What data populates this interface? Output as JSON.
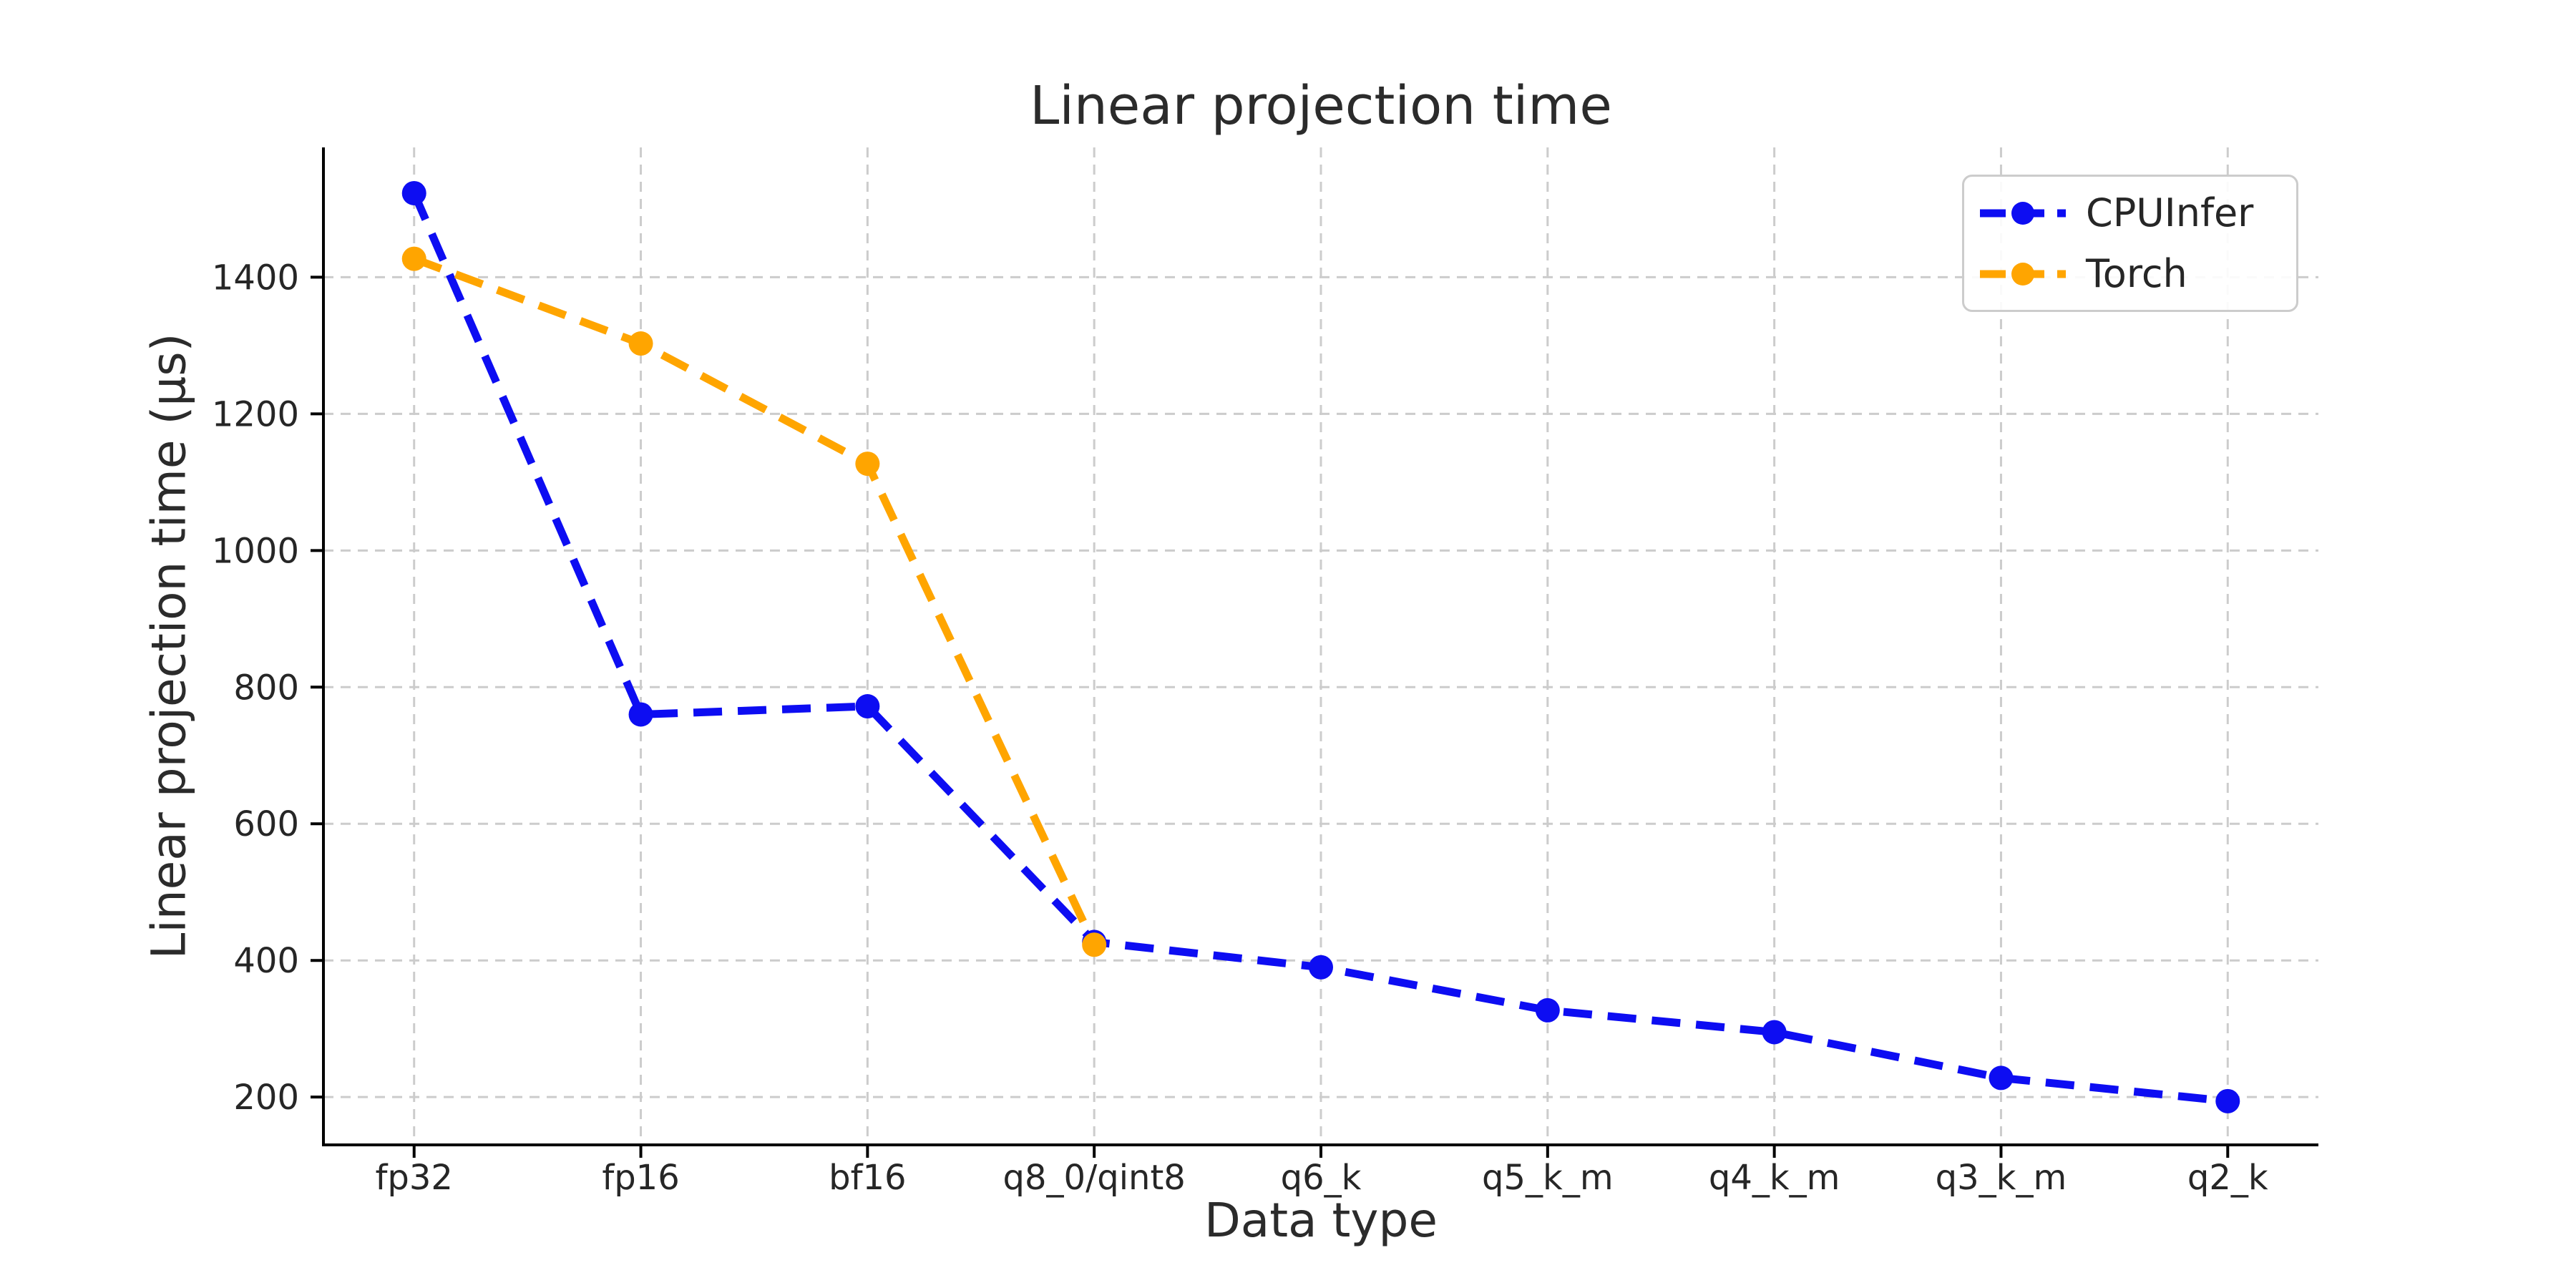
{
  "figure": {
    "background": "#ffffff"
  },
  "chart_data": {
    "type": "line",
    "title": "Linear projection time",
    "xlabel": "Data type",
    "ylabel": "Linear projection time (µs)",
    "categories": [
      "fp32",
      "fp16",
      "bf16",
      "q8_0/qint8",
      "q6_k",
      "q5_k_m",
      "q4_k_m",
      "q3_k_m",
      "q2_k"
    ],
    "y_ticks": [
      200,
      400,
      600,
      800,
      1000,
      1200,
      1400
    ],
    "ylim": [
      130,
      1590
    ],
    "xlim": [
      -0.4,
      8.4
    ],
    "grid": true,
    "legend_position": "upper right",
    "series": [
      {
        "name": "CPUInfer",
        "color": "#0d0df2",
        "linestyle": "dashed",
        "marker": "circle",
        "values": [
          1523,
          760,
          772,
          427,
          390,
          327,
          295,
          228,
          194
        ]
      },
      {
        "name": "Torch",
        "color": "#ffa500",
        "linestyle": "dashed",
        "marker": "circle",
        "values": [
          1427,
          1303,
          1127,
          423,
          null,
          null,
          null,
          null,
          null
        ]
      }
    ],
    "colors": {
      "grid": "#cccccc",
      "spine": "#000000",
      "tick_text": "#262626"
    }
  }
}
